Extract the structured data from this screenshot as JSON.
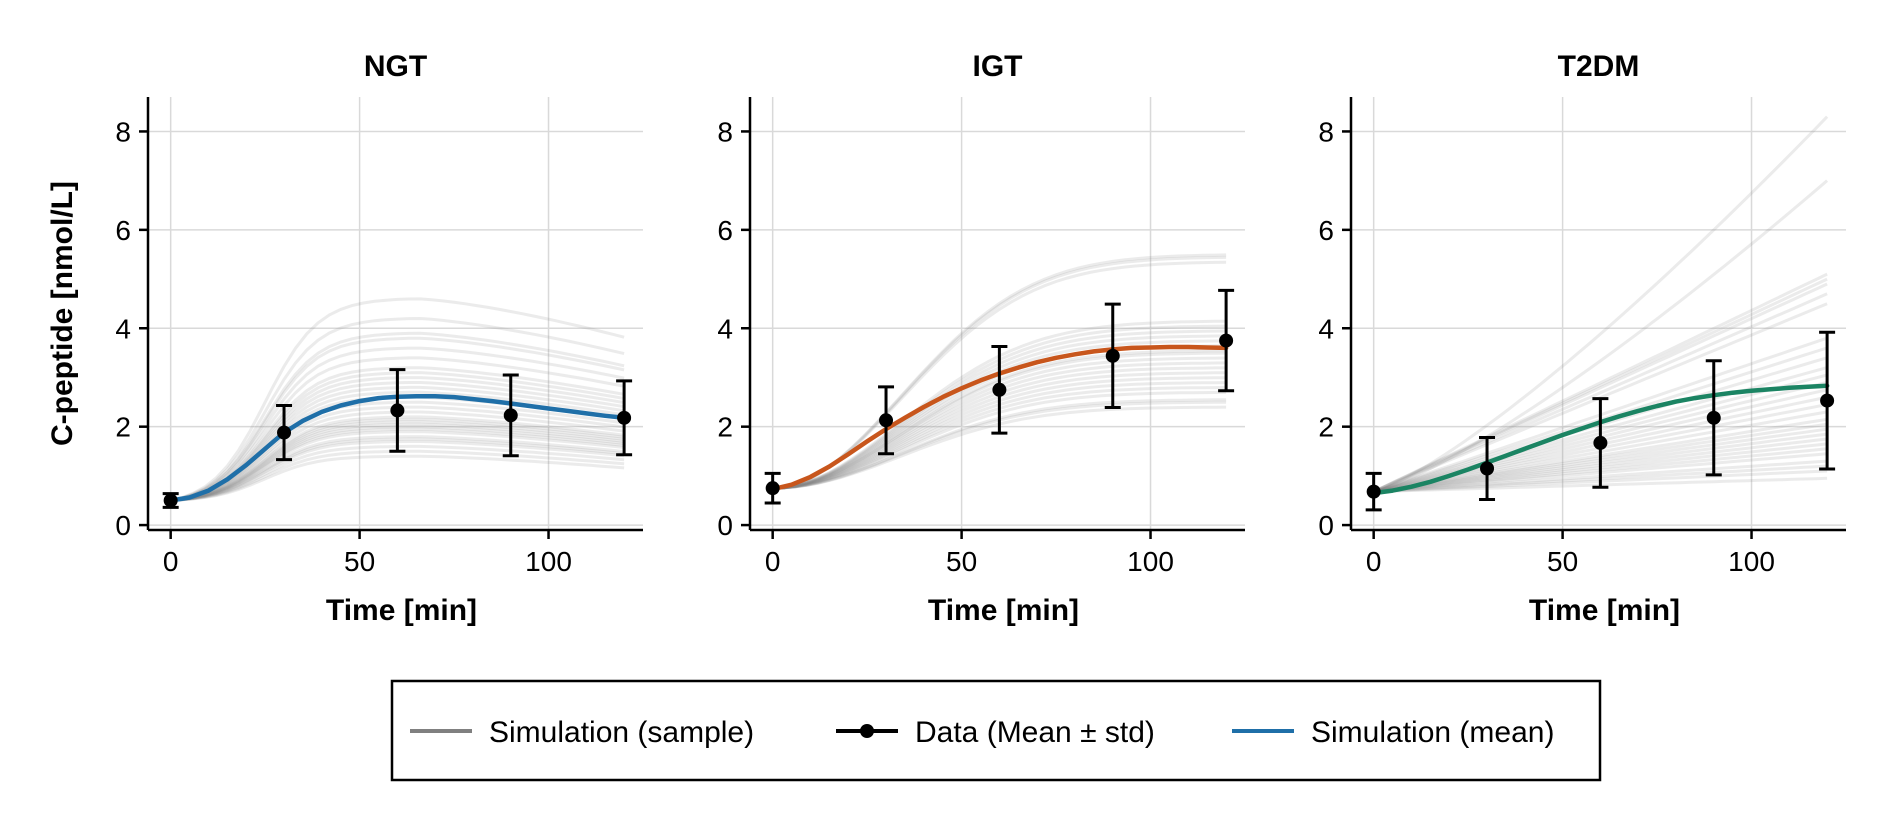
{
  "chart_data": {
    "type": "line",
    "ylabel": "C-peptide [nmol/L]",
    "xlabel": "Time [min]",
    "xlim": [
      -6,
      125
    ],
    "ylim": [
      -0.1,
      8.7
    ],
    "xticks": [
      0,
      50,
      100
    ],
    "yticks": [
      0,
      2,
      4,
      6,
      8
    ],
    "grid": true,
    "legend": {
      "placement": "bottom-center",
      "entries": [
        {
          "label": "Simulation (sample)",
          "color": "#808080",
          "style": "line"
        },
        {
          "label": "Data (Mean ± std)",
          "color": "#000000",
          "style": "line-marker"
        },
        {
          "label": "Simulation (mean)",
          "color": "#1f6fa8",
          "style": "line"
        }
      ]
    },
    "panels": [
      {
        "title": "NGT",
        "mean_color": "#1f6fa8",
        "data": {
          "x": [
            0,
            30,
            60,
            90,
            120
          ],
          "mean": [
            0.5,
            1.88,
            2.33,
            2.23,
            2.18
          ],
          "std": [
            0.14,
            0.55,
            0.83,
            0.82,
            0.75
          ]
        },
        "mean_curve": {
          "x": [
            0,
            5,
            10,
            15,
            20,
            25,
            30,
            35,
            40,
            45,
            50,
            55,
            60,
            65,
            70,
            75,
            80,
            85,
            90,
            95,
            100,
            105,
            110,
            115,
            120
          ],
          "y": [
            0.5,
            0.56,
            0.7,
            0.93,
            1.22,
            1.55,
            1.88,
            2.12,
            2.3,
            2.43,
            2.52,
            2.58,
            2.61,
            2.62,
            2.62,
            2.6,
            2.56,
            2.52,
            2.47,
            2.42,
            2.37,
            2.32,
            2.27,
            2.22,
            2.18
          ]
        },
        "sample_peaks": [
          1.4,
          1.5,
          1.6,
          1.7,
          1.75,
          1.8,
          1.9,
          1.95,
          2.0,
          2.05,
          2.1,
          2.15,
          2.2,
          2.3,
          2.4,
          2.5,
          2.6,
          2.7,
          2.8,
          2.9,
          3.0,
          3.1,
          3.2,
          3.4,
          3.6,
          3.8,
          3.9,
          4.2,
          4.6
        ],
        "sample_end_ratio": 0.83
      },
      {
        "title": "IGT",
        "mean_color": "#c8561c",
        "data": {
          "x": [
            0,
            30,
            60,
            90,
            120
          ],
          "mean": [
            0.75,
            2.13,
            2.75,
            3.44,
            3.75
          ],
          "std": [
            0.3,
            0.68,
            0.88,
            1.05,
            1.02
          ]
        },
        "mean_curve": {
          "x": [
            0,
            5,
            10,
            15,
            20,
            25,
            30,
            35,
            40,
            45,
            50,
            55,
            60,
            65,
            70,
            75,
            80,
            85,
            90,
            95,
            100,
            105,
            110,
            115,
            120
          ],
          "y": [
            0.73,
            0.82,
            0.98,
            1.19,
            1.44,
            1.7,
            1.95,
            2.18,
            2.4,
            2.6,
            2.78,
            2.94,
            3.08,
            3.2,
            3.31,
            3.4,
            3.47,
            3.53,
            3.57,
            3.6,
            3.61,
            3.62,
            3.62,
            3.61,
            3.6
          ]
        },
        "sample_plateaus": [
          2.4,
          2.5,
          2.55,
          2.7,
          2.8,
          2.9,
          3.0,
          3.1,
          3.2,
          3.3,
          3.4,
          3.5,
          3.55,
          3.65,
          3.75,
          3.85,
          3.95,
          4.05,
          4.15,
          5.35,
          5.45,
          5.5
        ]
      },
      {
        "title": "T2DM",
        "mean_color": "#1b8463",
        "data": {
          "x": [
            0,
            30,
            60,
            90,
            120
          ],
          "mean": [
            0.68,
            1.15,
            1.67,
            2.18,
            2.53
          ],
          "std": [
            0.37,
            0.63,
            0.9,
            1.16,
            1.39
          ]
        },
        "mean_curve": {
          "x": [
            0,
            5,
            10,
            15,
            20,
            25,
            30,
            35,
            40,
            45,
            50,
            55,
            60,
            65,
            70,
            75,
            80,
            85,
            90,
            95,
            100,
            105,
            110,
            115,
            120
          ],
          "y": [
            0.65,
            0.7,
            0.78,
            0.88,
            1.0,
            1.13,
            1.27,
            1.41,
            1.55,
            1.69,
            1.83,
            1.96,
            2.09,
            2.21,
            2.32,
            2.42,
            2.51,
            2.58,
            2.64,
            2.69,
            2.73,
            2.76,
            2.79,
            2.81,
            2.83
          ]
        },
        "sample_ends": [
          0.95,
          1.1,
          1.2,
          1.3,
          1.45,
          1.55,
          1.65,
          1.75,
          1.85,
          1.95,
          2.05,
          2.15,
          2.3,
          2.45,
          2.6,
          2.75,
          2.9,
          3.05,
          3.2,
          3.4,
          3.6,
          3.8,
          4.5,
          4.7,
          4.9,
          5.0,
          5.1,
          7.0,
          8.3
        ]
      }
    ]
  }
}
